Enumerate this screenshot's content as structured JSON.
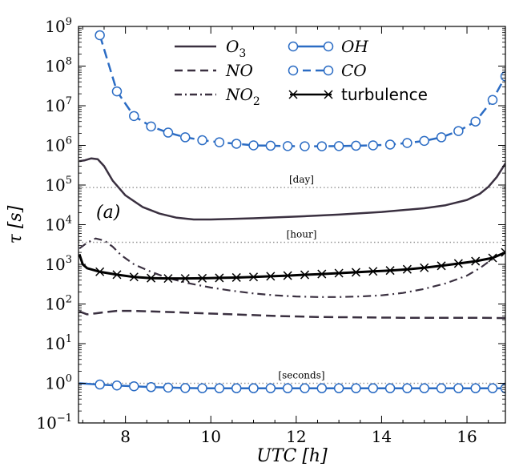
{
  "chart_data": {
    "type": "line",
    "xlabel": "UTC [h]",
    "ylabel": "τ [s]",
    "xlim": [
      6.9,
      16.9
    ],
    "ylim_log10": [
      -1,
      9
    ],
    "y_scale": "log",
    "x_ticks": [
      8,
      10,
      12,
      14,
      16
    ],
    "y_tick_labels": [
      "10^9",
      "10^8",
      "10^7",
      "10^6",
      "10^5",
      "10^4",
      "10^3",
      "10^2",
      "10^1",
      "10^0",
      "10^-1"
    ],
    "panel_label": "(a)",
    "reference_lines": [
      {
        "label": "[day]",
        "value": 86400
      },
      {
        "label": "[hour]",
        "value": 3600
      },
      {
        "label": "[seconds]",
        "value": 1
      }
    ],
    "legend": {
      "col1": [
        "O3",
        "NO",
        "NO2"
      ],
      "col2": [
        "OH",
        "CO",
        "turbulence"
      ]
    },
    "series": [
      {
        "name": "O3",
        "color": "#3a3040",
        "style": "solid",
        "x": [
          6.92,
          7.05,
          7.2,
          7.35,
          7.5,
          7.7,
          8.0,
          8.4,
          8.8,
          9.2,
          9.6,
          10.0,
          10.5,
          11.0,
          12.0,
          13.0,
          14.0,
          15.0,
          15.5,
          16.0,
          16.3,
          16.5,
          16.7,
          16.9
        ],
        "y": [
          400000,
          420000,
          470000,
          450000,
          300000,
          130000,
          55000,
          28000,
          19000,
          15000,
          13500,
          13500,
          14000,
          14500,
          16000,
          18000,
          21000,
          26000,
          31000,
          42000,
          60000,
          90000,
          160000,
          350000
        ]
      },
      {
        "name": "NO",
        "color": "#3a3040",
        "style": "dashed",
        "x": [
          6.92,
          7.1,
          7.3,
          7.5,
          7.8,
          8.2,
          8.8,
          9.5,
          10.5,
          11.5,
          12.5,
          13.5,
          14.5,
          15.5,
          16.3,
          16.9
        ],
        "y": [
          65,
          55,
          58,
          62,
          67,
          67,
          64,
          60,
          55,
          50,
          47,
          46,
          45,
          45,
          45,
          44
        ]
      },
      {
        "name": "NO2",
        "color": "#3a3040",
        "style": "dashdot",
        "x": [
          6.92,
          7.1,
          7.3,
          7.5,
          7.7,
          7.9,
          8.2,
          8.6,
          9.0,
          9.5,
          10.0,
          10.5,
          11.0,
          11.5,
          12.0,
          12.5,
          13.0,
          13.5,
          14.0,
          14.5,
          15.0,
          15.5,
          16.0,
          16.3,
          16.5,
          16.7,
          16.9
        ],
        "y": [
          2500,
          3500,
          4500,
          4000,
          2800,
          1700,
          1000,
          650,
          450,
          330,
          260,
          215,
          185,
          165,
          155,
          150,
          150,
          155,
          165,
          190,
          240,
          330,
          520,
          800,
          1150,
          1600,
          2000
        ]
      },
      {
        "name": "OH",
        "color": "#2b6cc4",
        "style": "solid-marker",
        "x": [
          6.92,
          7.4,
          7.8,
          8.2,
          8.6,
          9.0,
          9.4,
          9.8,
          10.2,
          10.6,
          11.0,
          11.4,
          11.8,
          12.2,
          12.6,
          13.0,
          13.4,
          13.8,
          14.2,
          14.6,
          15.0,
          15.4,
          15.8,
          16.2,
          16.6,
          16.9
        ],
        "y": [
          1.0,
          0.93,
          0.88,
          0.84,
          0.8,
          0.78,
          0.76,
          0.75,
          0.75,
          0.75,
          0.75,
          0.75,
          0.75,
          0.75,
          0.75,
          0.75,
          0.75,
          0.75,
          0.75,
          0.75,
          0.75,
          0.75,
          0.75,
          0.75,
          0.75,
          0.75
        ]
      },
      {
        "name": "CO",
        "color": "#2b6cc4",
        "style": "dashed-marker",
        "x": [
          7.4,
          7.8,
          8.2,
          8.6,
          9.0,
          9.4,
          9.8,
          10.2,
          10.6,
          11.0,
          11.4,
          11.8,
          12.2,
          12.6,
          13.0,
          13.4,
          13.8,
          14.2,
          14.6,
          15.0,
          15.4,
          15.8,
          16.2,
          16.6,
          16.9
        ],
        "y": [
          600000000,
          23000000,
          5500000,
          3000000,
          2100000,
          1600000,
          1350000,
          1200000,
          1100000,
          1000000,
          980000,
          960000,
          950000,
          950000,
          960000,
          980000,
          1000000,
          1050000,
          1150000,
          1300000,
          1600000,
          2300000,
          4000000,
          14000000,
          55000000
        ]
      },
      {
        "name": "turbulence",
        "color": "#000000",
        "style": "solid-x",
        "x": [
          6.92,
          7.0,
          7.1,
          7.4,
          7.8,
          8.2,
          8.6,
          9.0,
          9.4,
          9.8,
          10.2,
          10.6,
          11.0,
          11.4,
          11.8,
          12.2,
          12.6,
          13.0,
          13.4,
          13.8,
          14.2,
          14.6,
          15.0,
          15.4,
          15.8,
          16.2,
          16.6,
          16.9
        ],
        "y": [
          1800,
          1000,
          800,
          650,
          550,
          480,
          450,
          440,
          440,
          445,
          455,
          465,
          480,
          500,
          520,
          545,
          570,
          600,
          630,
          665,
          700,
          750,
          820,
          920,
          1050,
          1200,
          1450,
          2000
        ]
      }
    ]
  }
}
